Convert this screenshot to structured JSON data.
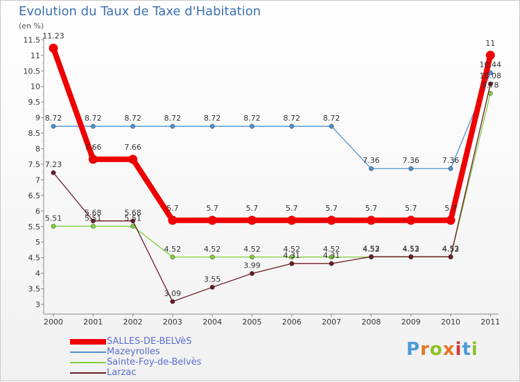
{
  "title": "Evolution du Taux de Taxe d'Habitation",
  "subtitle": "(en %)",
  "brand": "Proxiti",
  "brand_colors": [
    "#4c9ad6",
    "#e77524",
    "#8fbf2a",
    "#e77524",
    "#d6363a",
    "#4c9ad6",
    "#8fbf2a"
  ],
  "chart_data": {
    "type": "line",
    "x": [
      "2000",
      "2001",
      "2002",
      "2003",
      "2004",
      "2005",
      "2006",
      "2007",
      "2008",
      "2009",
      "2010",
      "2011"
    ],
    "ylim": [
      3,
      11.5
    ],
    "yticks": [
      "3",
      "3.5",
      "4",
      "4.5",
      "5",
      "5.5",
      "6",
      "6.5",
      "7",
      "7.5",
      "8",
      "8.5",
      "9",
      "9.5",
      "10",
      "10.5",
      "11",
      "11.5"
    ],
    "grid": false,
    "legend_position": "bottom-left",
    "series": [
      {
        "name": "SALLES-DE-BELVèS",
        "color": "#ee0000",
        "values": [
          11.23,
          7.66,
          7.66,
          5.7,
          5.7,
          5.7,
          5.7,
          5.7,
          5.7,
          5.7,
          5.7,
          11
        ],
        "labels": [
          "11.23",
          "7.66",
          "7.66",
          "5.7",
          "5.7",
          "5.7",
          "5.7",
          "5.7",
          "5.7",
          "5.7",
          "5.7",
          "11"
        ]
      },
      {
        "name": "Mazeyrolles",
        "color": "#4f91cf",
        "values": [
          8.72,
          8.72,
          8.72,
          8.72,
          8.72,
          8.72,
          8.72,
          8.72,
          7.36,
          7.36,
          7.36,
          10.44
        ],
        "labels": [
          "8.72",
          "8.72",
          "8.72",
          "8.72",
          "8.72",
          "8.72",
          "8.72",
          "8.72",
          "7.36",
          "7.36",
          "7.36",
          "10.44"
        ]
      },
      {
        "name": "Sainte-Foy-de-Belvès",
        "color": "#7fcf3b",
        "values": [
          5.51,
          5.51,
          5.51,
          4.52,
          4.52,
          4.52,
          4.52,
          4.52,
          4.52,
          4.52,
          4.52,
          9.78
        ],
        "labels": [
          "5.51",
          "5.51",
          "5.51",
          "4.52",
          "4.52",
          "4.52",
          "4.52",
          "4.52",
          "4.52",
          "4.52",
          "4.52",
          "9.78"
        ]
      },
      {
        "name": "Larzac",
        "color": "#6b1a24",
        "values": [
          7.23,
          5.68,
          5.68,
          3.09,
          3.55,
          3.99,
          4.31,
          4.31,
          4.53,
          4.53,
          4.53,
          10.08
        ],
        "labels": [
          "7.23",
          "5.68",
          "5.68",
          "3.09",
          "3.55",
          "3.99",
          "4.31",
          "4.31",
          "4.53",
          "4.53",
          "4.53",
          "10.08"
        ]
      }
    ]
  }
}
